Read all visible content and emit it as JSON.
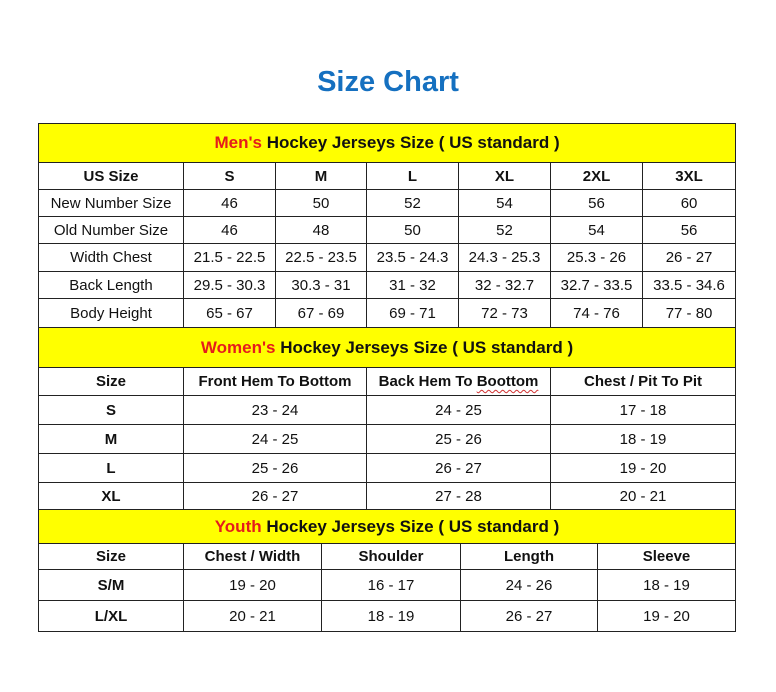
{
  "title": "Size Chart",
  "colors": {
    "title": "#1570c0",
    "section_bg": "#ffff00",
    "accent": "#e51c1c"
  },
  "sections": [
    {
      "accent": "Men's",
      "heading": " Hockey Jerseys Size ( US standard )",
      "columns": [
        "US Size",
        "S",
        "M",
        "L",
        "XL",
        "2XL",
        "3XL"
      ],
      "rows": [
        [
          "New Number Size",
          "46",
          "50",
          "52",
          "54",
          "56",
          "60"
        ],
        [
          "Old Number Size",
          "46",
          "48",
          "50",
          "52",
          "54",
          "56"
        ],
        [
          "Width Chest",
          "21.5 - 22.5",
          "22.5 - 23.5",
          "23.5 - 24.3",
          "24.3 - 25.3",
          "25.3 - 26",
          "26 - 27"
        ],
        [
          "Back Length",
          "29.5 - 30.3",
          "30.3 - 31",
          "31 - 32",
          "32 - 32.7",
          "32.7 - 33.5",
          "33.5 - 34.6"
        ],
        [
          "Body Height",
          "65 - 67",
          "67 - 69",
          "69 - 71",
          "72 - 73",
          "74 - 76",
          "77 - 80"
        ]
      ]
    },
    {
      "accent": "Women's",
      "heading": " Hockey Jerseys Size ( US standard )",
      "columns": [
        "Size",
        "Front Hem To Bottom",
        "Back Hem To Boottom",
        "Chest / Pit To Pit"
      ],
      "rows": [
        [
          "S",
          "23 - 24",
          "24 - 25",
          "17 - 18"
        ],
        [
          "M",
          "24 - 25",
          "25 - 26",
          "18 - 19"
        ],
        [
          "L",
          "25 - 26",
          "26 - 27",
          "19 - 20"
        ],
        [
          "XL",
          "26 - 27",
          "27 - 28",
          "20 - 21"
        ]
      ]
    },
    {
      "accent": "Youth",
      "heading": " Hockey Jerseys Size ( US standard )",
      "columns": [
        "Size",
        "Chest / Width",
        "Shoulder",
        "Length",
        "Sleeve"
      ],
      "rows": [
        [
          "S/M",
          "19 - 20",
          "16 - 17",
          "24 - 26",
          "18 - 19"
        ],
        [
          "L/XL",
          "20 - 21",
          "18 - 19",
          "26 - 27",
          "19 - 20"
        ]
      ]
    }
  ]
}
